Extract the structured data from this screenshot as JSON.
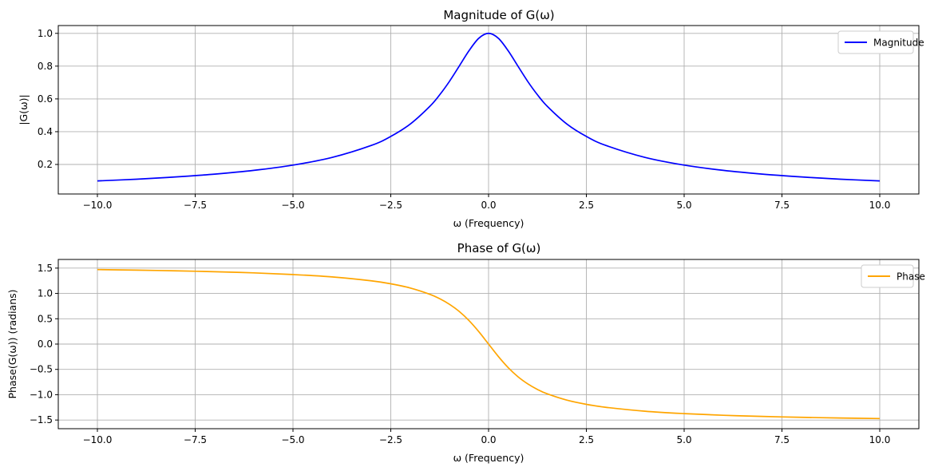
{
  "chart_data": [
    {
      "type": "line",
      "title": "Magnitude of G(ω)",
      "xlabel": "ω (Frequency)",
      "ylabel": "|G(ω)|",
      "xlim": [
        -11,
        11
      ],
      "ylim": [
        0.0198,
        1.0476
      ],
      "x_ticks": [
        -10,
        -7.5,
        -5,
        -2.5,
        0,
        2.5,
        5,
        7.5,
        10
      ],
      "x_tick_labels": [
        "−10.0",
        "−7.5",
        "−5.0",
        "−2.5",
        "0.0",
        "2.5",
        "5.0",
        "7.5",
        "10.0"
      ],
      "y_ticks": [
        0.2,
        0.4,
        0.6,
        0.8,
        1.0
      ],
      "y_tick_labels": [
        "0.2",
        "0.4",
        "0.6",
        "0.8",
        "1.0"
      ],
      "grid": true,
      "legend": "top-right",
      "series": [
        {
          "name": "Magnitude",
          "color": "#0000ff",
          "x": [
            -10,
            -9,
            -8,
            -7,
            -6,
            -5,
            -4,
            -3,
            -2.5,
            -2,
            -1.5,
            -1.25,
            -1,
            -0.75,
            -0.5,
            -0.25,
            0,
            0.25,
            0.5,
            0.75,
            1,
            1.25,
            1.5,
            2,
            2.5,
            3,
            4,
            5,
            6,
            7,
            8,
            9,
            10
          ],
          "values": [
            0.0995,
            0.11,
            0.124,
            0.141,
            0.164,
            0.196,
            0.243,
            0.316,
            0.371,
            0.447,
            0.555,
            0.625,
            0.707,
            0.8,
            0.894,
            0.97,
            1.0,
            0.97,
            0.894,
            0.8,
            0.707,
            0.625,
            0.555,
            0.447,
            0.371,
            0.316,
            0.243,
            0.196,
            0.164,
            0.141,
            0.124,
            0.11,
            0.0995
          ]
        }
      ]
    },
    {
      "type": "line",
      "title": "Phase of G(ω)",
      "xlabel": "ω (Frequency)",
      "ylabel": "Phase(G(ω)) (radians)",
      "xlim": [
        -11,
        11
      ],
      "ylim": [
        -1.671,
        1.671
      ],
      "x_ticks": [
        -10,
        -7.5,
        -5,
        -2.5,
        0,
        2.5,
        5,
        7.5,
        10
      ],
      "x_tick_labels": [
        "−10.0",
        "−7.5",
        "−5.0",
        "−2.5",
        "0.0",
        "2.5",
        "5.0",
        "7.5",
        "10.0"
      ],
      "y_ticks": [
        -1.5,
        -1.0,
        -0.5,
        0.0,
        0.5,
        1.0,
        1.5
      ],
      "y_tick_labels": [
        "−1.5",
        "−1.0",
        "−0.5",
        "0.0",
        "0.5",
        "1.0",
        "1.5"
      ],
      "grid": true,
      "legend": "top-right",
      "series": [
        {
          "name": "Phase",
          "color": "#ffa500",
          "x": [
            -10,
            -9,
            -8,
            -7,
            -6,
            -5,
            -4,
            -3,
            -2.5,
            -2,
            -1.5,
            -1.25,
            -1,
            -0.75,
            -0.5,
            -0.25,
            0,
            0.25,
            0.5,
            0.75,
            1,
            1.25,
            1.5,
            2,
            2.5,
            3,
            4,
            5,
            6,
            7,
            8,
            9,
            10
          ],
          "values": [
            1.471,
            1.46,
            1.446,
            1.429,
            1.406,
            1.373,
            1.326,
            1.249,
            1.19,
            1.107,
            0.983,
            0.896,
            0.785,
            0.644,
            0.464,
            0.245,
            0.0,
            -0.245,
            -0.464,
            -0.644,
            -0.785,
            -0.896,
            -0.983,
            -1.107,
            -1.19,
            -1.249,
            -1.326,
            -1.373,
            -1.406,
            -1.429,
            -1.446,
            -1.46,
            -1.471
          ]
        }
      ]
    }
  ]
}
